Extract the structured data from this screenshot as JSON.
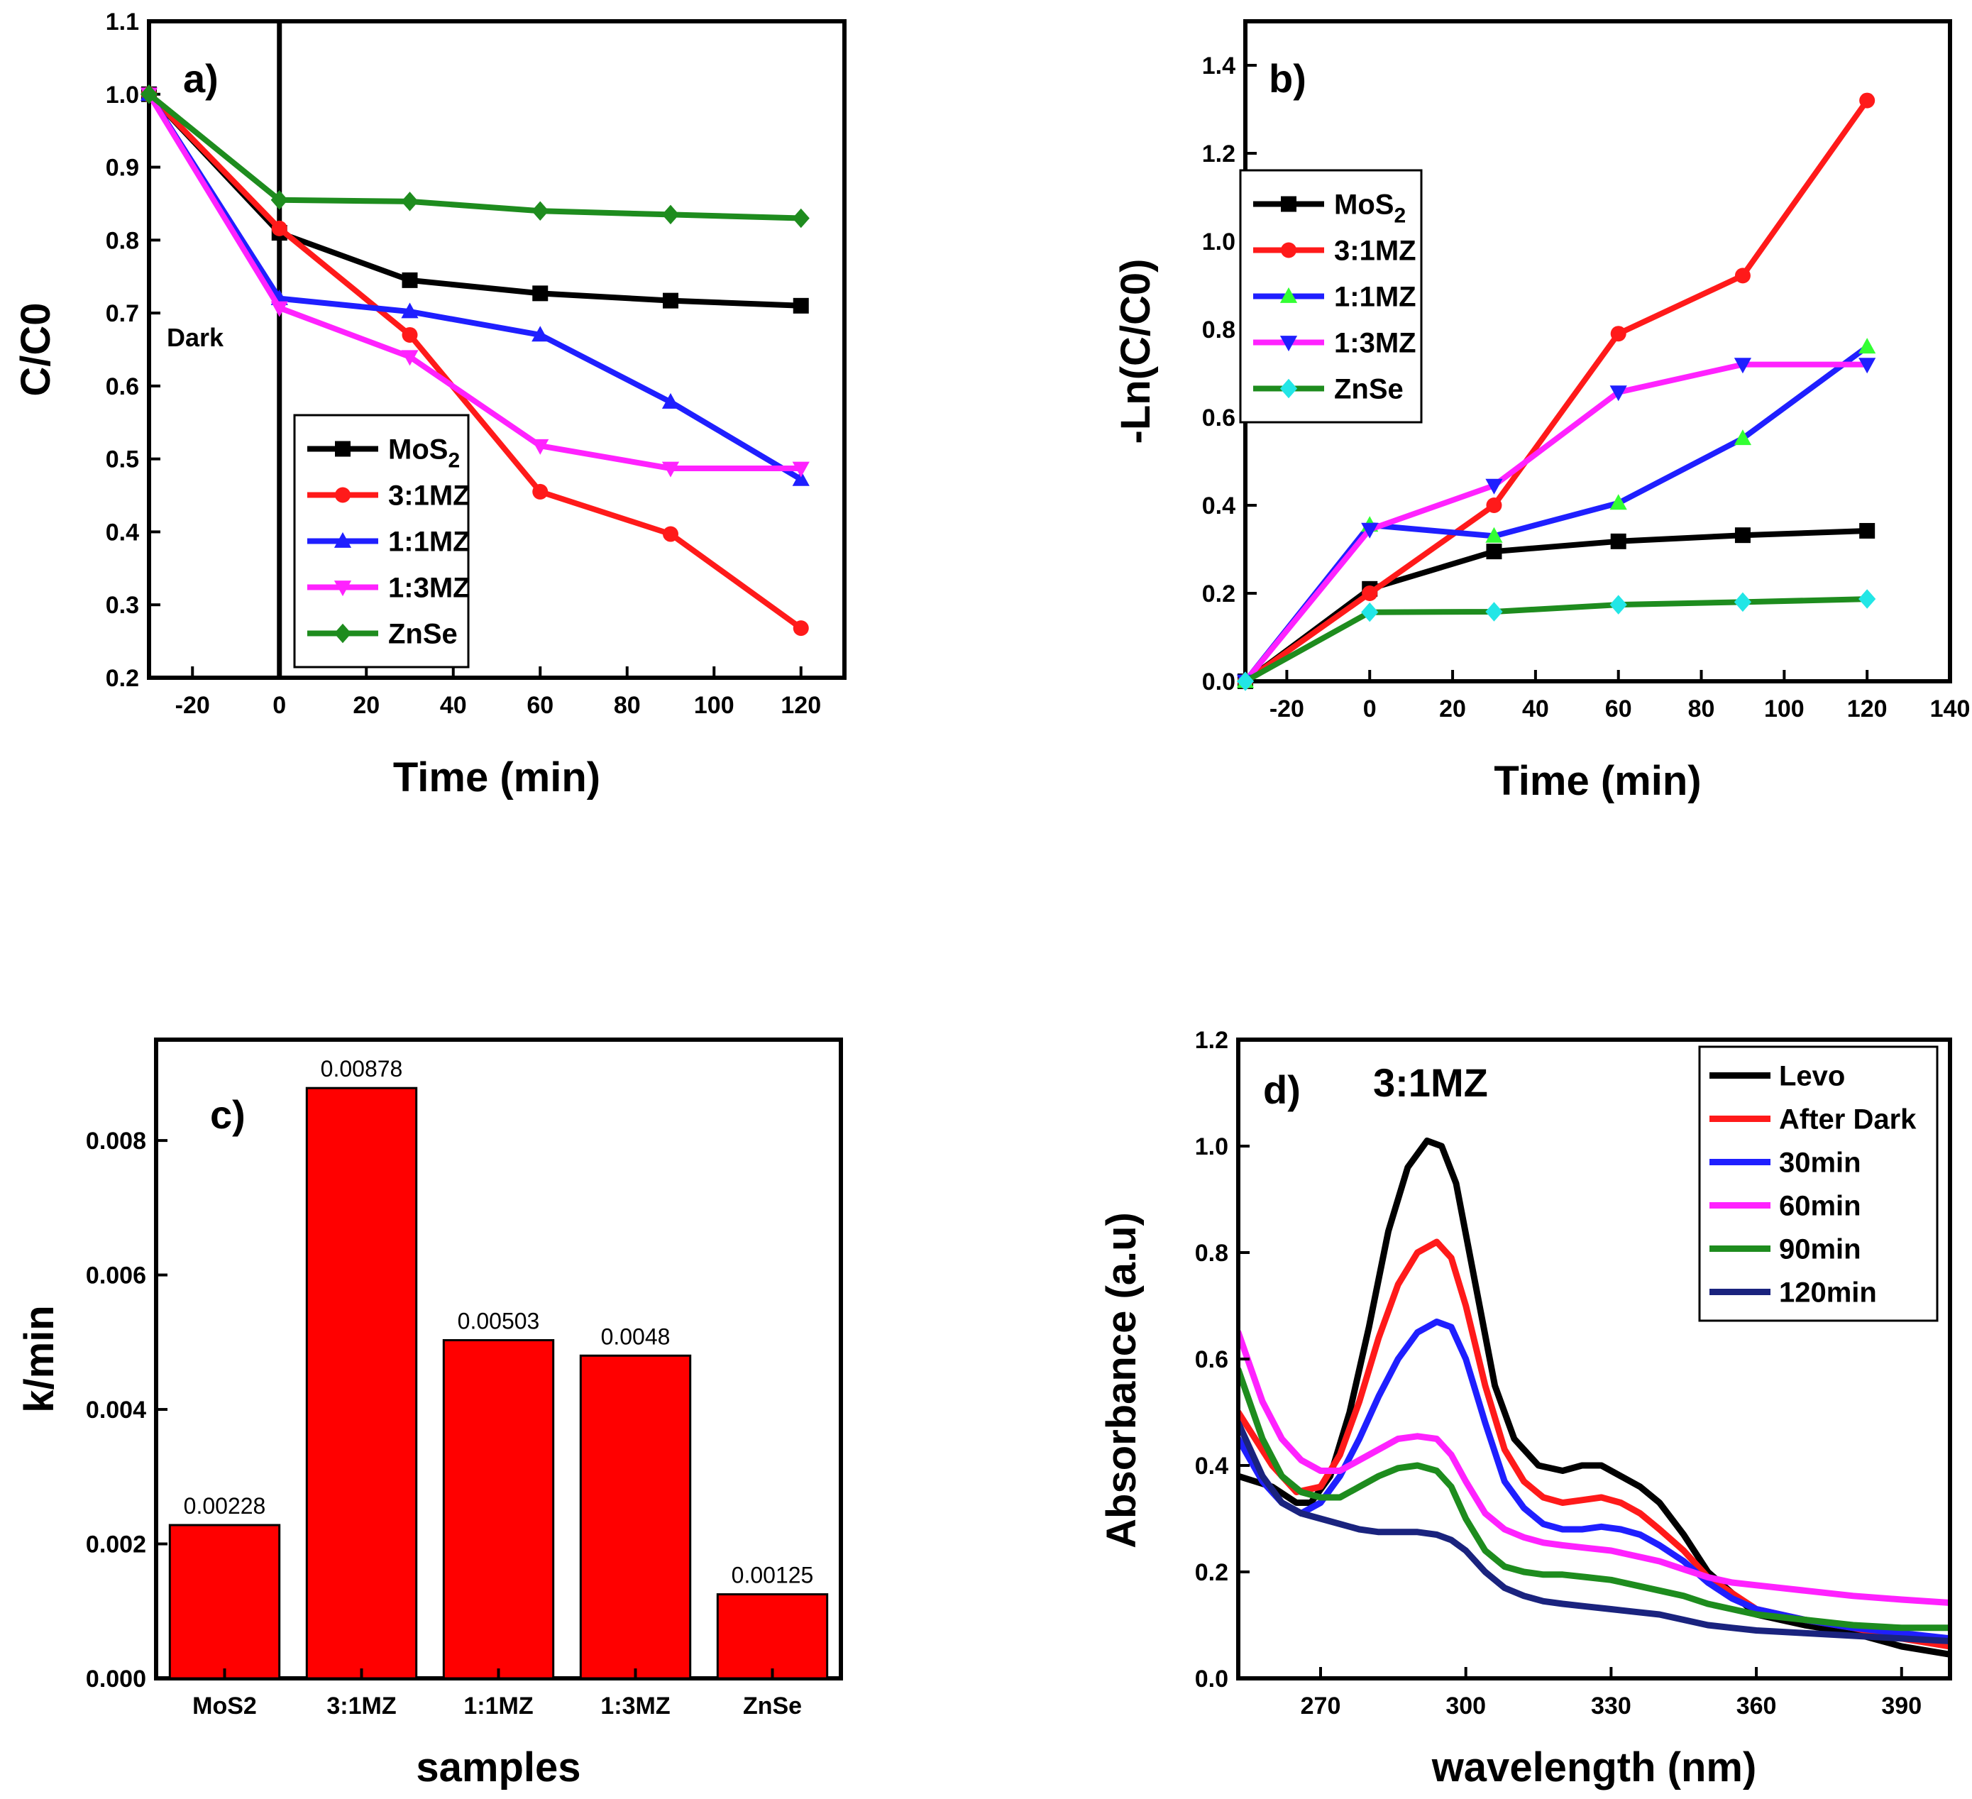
{
  "colors": {
    "black": "#000000",
    "red": "#ff1a1a",
    "blue": "#1f1fff",
    "magenta": "#ff22ff",
    "green": "#1e8c1e",
    "cyan": "#22e6e6",
    "navy": "#1a237e",
    "lime": "#33ff33",
    "bar": "#ff0000"
  },
  "chart_data": [
    {
      "id": "a",
      "type": "line",
      "panel_label": "a)",
      "annotation": "Dark",
      "xlabel": "Time (min)",
      "ylabel": "C/C0",
      "xlim": [
        -30,
        130
      ],
      "ylim": [
        0.2,
        1.1
      ],
      "xticks": [
        -20,
        0,
        20,
        40,
        60,
        80,
        100,
        120
      ],
      "xticklabels": [
        "-20",
        "0",
        "20",
        "40",
        "60",
        "80",
        "100",
        "120"
      ],
      "yticks": [
        0.2,
        0.3,
        0.4,
        0.5,
        0.6,
        0.7,
        0.8,
        0.9,
        1.0,
        1.1
      ],
      "yticklabels": [
        "0.2",
        "0.3",
        "0.4",
        "0.5",
        "0.6",
        "0.7",
        "0.8",
        "0.9",
        "1.0",
        "1.1"
      ],
      "vline": 0,
      "legend_position": "center-right",
      "series": [
        {
          "name": "MoS2",
          "label_main": "MoS",
          "label_sub": "2",
          "color": "black",
          "marker": "square",
          "x": [
            -30,
            0,
            30,
            60,
            90,
            120
          ],
          "y": [
            1.0,
            0.81,
            0.745,
            0.727,
            0.717,
            0.71
          ]
        },
        {
          "name": "3:1MZ",
          "label_main": "3:1MZ",
          "label_sub": "",
          "color": "red",
          "marker": "circle",
          "x": [
            -30,
            0,
            30,
            60,
            90,
            120
          ],
          "y": [
            1.0,
            0.816,
            0.67,
            0.455,
            0.397,
            0.268
          ]
        },
        {
          "name": "1:1MZ",
          "label_main": "1:1MZ",
          "label_sub": "",
          "color": "blue",
          "marker": "triangle-up",
          "x": [
            -30,
            0,
            30,
            60,
            90,
            120
          ],
          "y": [
            1.0,
            0.72,
            0.702,
            0.67,
            0.578,
            0.472
          ]
        },
        {
          "name": "1:3MZ",
          "label_main": "1:3MZ",
          "label_sub": "",
          "color": "magenta",
          "marker": "triangle-down",
          "x": [
            -30,
            0,
            30,
            60,
            90,
            120
          ],
          "y": [
            1.0,
            0.707,
            0.64,
            0.518,
            0.487,
            0.487
          ]
        },
        {
          "name": "ZnSe",
          "label_main": "ZnSe",
          "label_sub": "",
          "color": "green",
          "marker": "diamond",
          "x": [
            -30,
            0,
            30,
            60,
            90,
            120
          ],
          "y": [
            1.0,
            0.855,
            0.853,
            0.84,
            0.835,
            0.83
          ]
        }
      ]
    },
    {
      "id": "b",
      "type": "line",
      "panel_label": "b)",
      "xlabel": "Time (min)",
      "ylabel": "-Ln(C/C0)",
      "xlim": [
        -30,
        140
      ],
      "ylim": [
        0.0,
        1.5
      ],
      "xticks": [
        -20,
        0,
        20,
        40,
        60,
        80,
        100,
        120,
        140
      ],
      "xticklabels": [
        "-20",
        "0",
        "20",
        "40",
        "60",
        "80",
        "100",
        "120",
        "140"
      ],
      "yticks": [
        0.0,
        0.2,
        0.4,
        0.6,
        0.8,
        1.0,
        1.2,
        1.4
      ],
      "yticklabels": [
        "0.0",
        "0.2",
        "0.4",
        "0.6",
        "0.8",
        "1.0",
        "1.2",
        "1.4"
      ],
      "legend_position": "top-left",
      "series": [
        {
          "name": "MoS2",
          "label_main": "MoS",
          "label_sub": "2",
          "color": "black",
          "marker": "square",
          "x": [
            -30,
            0,
            30,
            60,
            90,
            120
          ],
          "y": [
            0.0,
            0.21,
            0.295,
            0.318,
            0.332,
            0.342
          ]
        },
        {
          "name": "3:1MZ",
          "label_main": "3:1MZ",
          "label_sub": "",
          "color": "red",
          "marker": "circle",
          "x": [
            -30,
            0,
            30,
            60,
            90,
            120
          ],
          "y": [
            0.0,
            0.2,
            0.4,
            0.79,
            0.922,
            1.32
          ]
        },
        {
          "name": "1:1MZ",
          "label_main": "1:1MZ",
          "label_sub": "",
          "color": "blue",
          "marker": "triangle-up",
          "marker_color": "lime",
          "x": [
            -30,
            0,
            30,
            60,
            90,
            120
          ],
          "y": [
            0.0,
            0.355,
            0.33,
            0.405,
            0.552,
            0.76
          ]
        },
        {
          "name": "1:3MZ",
          "label_main": "1:3MZ",
          "label_sub": "",
          "color": "magenta",
          "marker": "triangle-down",
          "marker_color": "blue",
          "x": [
            -30,
            0,
            30,
            60,
            90,
            120
          ],
          "y": [
            0.0,
            0.345,
            0.445,
            0.657,
            0.72,
            0.72
          ]
        },
        {
          "name": "ZnSe",
          "label_main": "ZnSe",
          "label_sub": "",
          "color": "green",
          "marker": "diamond",
          "marker_color": "cyan",
          "x": [
            -30,
            0,
            30,
            60,
            90,
            120
          ],
          "y": [
            0.0,
            0.157,
            0.158,
            0.174,
            0.18,
            0.187
          ]
        }
      ]
    },
    {
      "id": "c",
      "type": "bar",
      "panel_label": "c)",
      "xlabel": "samples",
      "ylabel": "k/min",
      "ylim": [
        0.0,
        0.0095
      ],
      "yticks": [
        0.0,
        0.002,
        0.004,
        0.006,
        0.008
      ],
      "yticklabels": [
        "0.000",
        "0.002",
        "0.004",
        "0.006",
        "0.008"
      ],
      "categories": [
        "MoS2",
        "3:1MZ",
        "1:1MZ",
        "1:3MZ",
        "ZnSe"
      ],
      "values": [
        0.00228,
        0.00878,
        0.00503,
        0.0048,
        0.00125
      ],
      "data_labels": [
        "0.00228",
        "0.00878",
        "0.00503",
        "0.0048",
        "0.00125"
      ]
    },
    {
      "id": "d",
      "type": "line",
      "panel_label": "d)",
      "annotation": "3:1MZ",
      "xlabel": "wavelength (nm)",
      "ylabel": "Absorbance (a.u)",
      "xlim": [
        253,
        400
      ],
      "ylim": [
        0.0,
        1.2
      ],
      "xticks": [
        270,
        300,
        330,
        360,
        390
      ],
      "xticklabels": [
        "270",
        "300",
        "330",
        "360",
        "390"
      ],
      "yticks": [
        0.0,
        0.2,
        0.4,
        0.6,
        0.8,
        1.0,
        1.2
      ],
      "yticklabels": [
        "0.0",
        "0.2",
        "0.4",
        "0.6",
        "0.8",
        "1.0",
        "1.2"
      ],
      "legend_position": "top-right",
      "series": [
        {
          "name": "Levo",
          "color": "black",
          "x": [
            253,
            260,
            265,
            268,
            272,
            276,
            280,
            284,
            288,
            292,
            295,
            298,
            302,
            306,
            310,
            315,
            320,
            324,
            328,
            332,
            336,
            340,
            345,
            350,
            355,
            360,
            370,
            380,
            390,
            400
          ],
          "y": [
            0.38,
            0.36,
            0.33,
            0.33,
            0.38,
            0.5,
            0.66,
            0.84,
            0.96,
            1.01,
            1.0,
            0.93,
            0.74,
            0.55,
            0.45,
            0.4,
            0.39,
            0.4,
            0.4,
            0.38,
            0.36,
            0.33,
            0.27,
            0.2,
            0.16,
            0.12,
            0.1,
            0.085,
            0.06,
            0.045
          ]
        },
        {
          "name": "After Dark",
          "color": "red",
          "x": [
            253,
            260,
            265,
            270,
            274,
            278,
            282,
            286,
            290,
            294,
            297,
            300,
            304,
            308,
            312,
            316,
            320,
            324,
            328,
            332,
            336,
            340,
            345,
            350,
            355,
            360,
            370,
            380,
            390,
            400
          ],
          "y": [
            0.5,
            0.4,
            0.35,
            0.36,
            0.42,
            0.52,
            0.64,
            0.74,
            0.8,
            0.82,
            0.79,
            0.7,
            0.55,
            0.43,
            0.37,
            0.34,
            0.33,
            0.335,
            0.34,
            0.33,
            0.31,
            0.28,
            0.24,
            0.19,
            0.16,
            0.13,
            0.11,
            0.095,
            0.075,
            0.06
          ]
        },
        {
          "name": "30min",
          "color": "blue",
          "x": [
            253,
            258,
            262,
            266,
            270,
            274,
            278,
            282,
            286,
            290,
            294,
            297,
            300,
            304,
            308,
            312,
            316,
            320,
            324,
            328,
            332,
            336,
            340,
            345,
            350,
            355,
            360,
            370,
            380,
            390,
            400
          ],
          "y": [
            0.45,
            0.37,
            0.33,
            0.31,
            0.33,
            0.38,
            0.45,
            0.53,
            0.6,
            0.65,
            0.67,
            0.66,
            0.6,
            0.48,
            0.37,
            0.32,
            0.29,
            0.28,
            0.28,
            0.285,
            0.28,
            0.27,
            0.25,
            0.22,
            0.18,
            0.15,
            0.13,
            0.11,
            0.095,
            0.085,
            0.075
          ]
        },
        {
          "name": "60min",
          "color": "magenta",
          "x": [
            253,
            258,
            262,
            266,
            270,
            274,
            278,
            282,
            286,
            290,
            294,
            297,
            300,
            304,
            308,
            312,
            316,
            320,
            325,
            330,
            335,
            340,
            345,
            350,
            355,
            360,
            370,
            380,
            390,
            400
          ],
          "y": [
            0.65,
            0.52,
            0.45,
            0.41,
            0.39,
            0.39,
            0.41,
            0.43,
            0.45,
            0.455,
            0.45,
            0.42,
            0.37,
            0.31,
            0.28,
            0.265,
            0.255,
            0.25,
            0.245,
            0.24,
            0.23,
            0.22,
            0.205,
            0.19,
            0.18,
            0.175,
            0.165,
            0.155,
            0.148,
            0.142
          ]
        },
        {
          "name": "90min",
          "color": "green",
          "x": [
            253,
            258,
            262,
            266,
            270,
            274,
            278,
            282,
            286,
            290,
            294,
            297,
            300,
            304,
            308,
            312,
            316,
            320,
            325,
            330,
            335,
            340,
            345,
            350,
            355,
            360,
            370,
            380,
            390,
            400
          ],
          "y": [
            0.58,
            0.45,
            0.38,
            0.35,
            0.34,
            0.34,
            0.36,
            0.38,
            0.395,
            0.4,
            0.39,
            0.36,
            0.3,
            0.24,
            0.21,
            0.2,
            0.195,
            0.195,
            0.19,
            0.185,
            0.175,
            0.165,
            0.155,
            0.14,
            0.13,
            0.12,
            0.11,
            0.1,
            0.095,
            0.095
          ]
        },
        {
          "name": "120min",
          "color": "navy",
          "x": [
            253,
            258,
            262,
            266,
            270,
            274,
            278,
            282,
            286,
            290,
            294,
            297,
            300,
            304,
            308,
            312,
            316,
            320,
            325,
            330,
            335,
            340,
            345,
            350,
            355,
            360,
            370,
            380,
            390,
            400
          ],
          "y": [
            0.48,
            0.38,
            0.33,
            0.31,
            0.3,
            0.29,
            0.28,
            0.275,
            0.275,
            0.275,
            0.27,
            0.26,
            0.24,
            0.2,
            0.17,
            0.155,
            0.145,
            0.14,
            0.135,
            0.13,
            0.125,
            0.12,
            0.11,
            0.1,
            0.095,
            0.09,
            0.085,
            0.08,
            0.075,
            0.07
          ]
        }
      ]
    }
  ]
}
